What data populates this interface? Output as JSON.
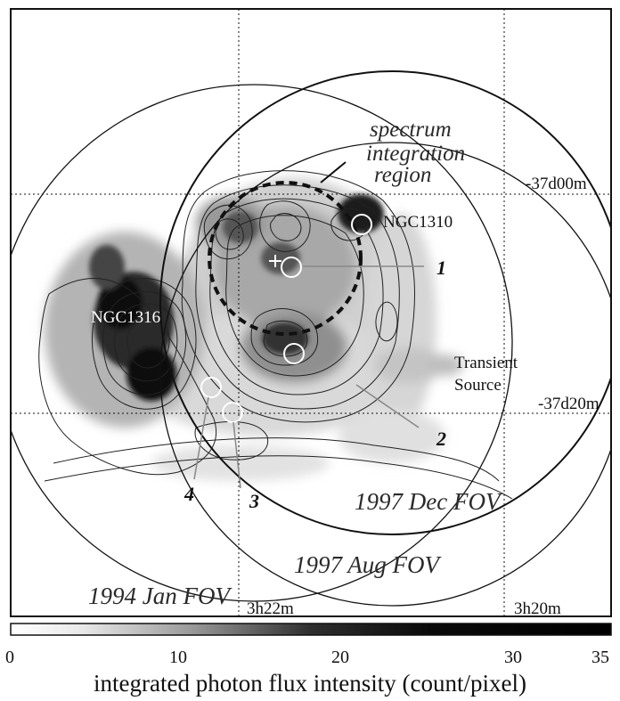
{
  "coordinates": {
    "dec_top": "-37d00m",
    "dec_bottom": "-37d20m",
    "ra_left": "3h22m",
    "ra_right": "3h20m"
  },
  "sources": {
    "ngc1310": "NGC1310",
    "ngc1316": "NGC1316",
    "transient_line1": "Transient",
    "transient_line2": "Source"
  },
  "spectrum_region": {
    "line1": "spectrum",
    "line2": "integration",
    "line3": "region"
  },
  "numbered_sources": [
    "1",
    "2",
    "3",
    "4"
  ],
  "fov_labels": {
    "dec1997": "1997 Dec FOV",
    "aug1997": "1997 Aug FOV",
    "jan1994": "1994 Jan FOV"
  },
  "colorbar": {
    "ticks": [
      "0",
      "10",
      "20",
      "30",
      "35"
    ],
    "label": "integrated photon flux intensity (count/pixel)",
    "min_color": "#ffffff",
    "max_color": "#000000"
  }
}
